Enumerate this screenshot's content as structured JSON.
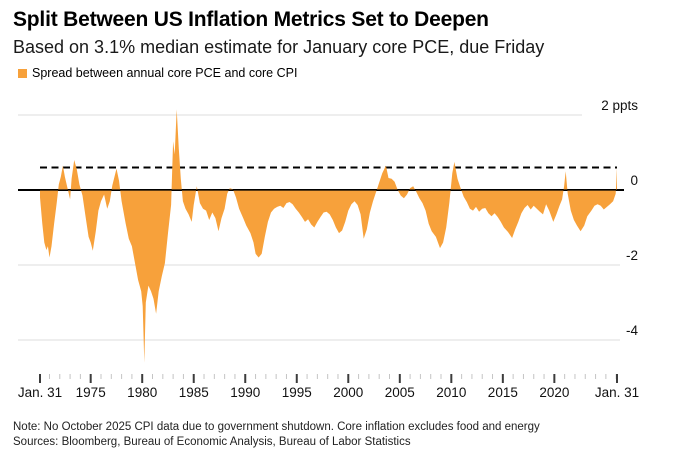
{
  "header": {
    "title": "Split Between US Inflation Metrics Set to Deepen",
    "subtitle": "Based on 3.1% median estimate for January core PCE, due Friday"
  },
  "legend": {
    "label": "Spread between annual core PCE and core CPI",
    "swatch_color": "#F7A13B"
  },
  "footer": {
    "note": "Note: No October 2025 CPI data due to government shutdown. Core inflation excludes food and energy",
    "sources": "Sources: Bloomberg, Bureau of Economic Analysis, Bureau of Labor Statistics"
  },
  "chart_data": {
    "type": "area",
    "title": "Split Between US Inflation Metrics Set to Deepen",
    "subtitle": "Based on 3.1% median estimate for January core PCE, due Friday",
    "unit": "ppts",
    "legend_position": "top-left",
    "grid": "horizontal",
    "series_color": "#F7A13B",
    "dashed_reference_value": 0.6,
    "x_axis": {
      "start_label": "Jan. 31",
      "end_label": "Jan. 31",
      "start_time": 1970.08,
      "end_time": 2026.08,
      "major_year_ticks": [
        1975,
        1980,
        1985,
        1990,
        1995,
        2000,
        2005,
        2010,
        2015,
        2020
      ],
      "minor_tick_every_years": 1
    },
    "y_axis": {
      "ticks": [
        {
          "label": "2 ppts",
          "value": 2
        },
        {
          "label": "0",
          "value": 0
        },
        {
          "label": "-2",
          "value": -2
        },
        {
          "label": "-4",
          "value": -4
        }
      ],
      "range": [
        -4.8,
        2.35
      ]
    },
    "series": [
      {
        "name": "Spread between annual core PCE and core CPI",
        "points": [
          [
            1970.08,
            -0.2
          ],
          [
            1970.3,
            -0.9
          ],
          [
            1970.5,
            -1.4
          ],
          [
            1970.7,
            -1.6
          ],
          [
            1970.85,
            -1.5
          ],
          [
            1971.0,
            -1.8
          ],
          [
            1971.2,
            -1.5
          ],
          [
            1971.45,
            -0.9
          ],
          [
            1971.7,
            -0.35
          ],
          [
            1971.9,
            0.15
          ],
          [
            1972.1,
            0.35
          ],
          [
            1972.3,
            0.65
          ],
          [
            1972.5,
            0.35
          ],
          [
            1972.75,
            0.05
          ],
          [
            1973.0,
            -0.25
          ],
          [
            1973.15,
            0.3
          ],
          [
            1973.4,
            0.8
          ],
          [
            1973.65,
            0.55
          ],
          [
            1973.9,
            0.15
          ],
          [
            1974.2,
            -0.15
          ],
          [
            1974.5,
            -0.7
          ],
          [
            1974.8,
            -1.25
          ],
          [
            1975.0,
            -1.4
          ],
          [
            1975.2,
            -1.62
          ],
          [
            1975.5,
            -1.1
          ],
          [
            1975.75,
            -0.55
          ],
          [
            1976.0,
            -0.3
          ],
          [
            1976.3,
            -0.12
          ],
          [
            1976.6,
            -0.5
          ],
          [
            1976.85,
            -0.3
          ],
          [
            1977.1,
            0.12
          ],
          [
            1977.5,
            0.57
          ],
          [
            1977.75,
            0.25
          ],
          [
            1978.0,
            -0.3
          ],
          [
            1978.4,
            -0.9
          ],
          [
            1978.7,
            -1.3
          ],
          [
            1979.0,
            -1.5
          ],
          [
            1979.3,
            -1.95
          ],
          [
            1979.6,
            -2.4
          ],
          [
            1979.9,
            -2.7
          ],
          [
            1980.05,
            -3.1
          ],
          [
            1980.2,
            -4.6
          ],
          [
            1980.35,
            -3.0
          ],
          [
            1980.6,
            -2.55
          ],
          [
            1980.85,
            -2.7
          ],
          [
            1981.1,
            -2.9
          ],
          [
            1981.35,
            -3.3
          ],
          [
            1981.6,
            -2.7
          ],
          [
            1981.9,
            -2.3
          ],
          [
            1982.2,
            -1.95
          ],
          [
            1982.5,
            -1.15
          ],
          [
            1982.8,
            -0.4
          ],
          [
            1983.0,
            1.3
          ],
          [
            1983.15,
            0.95
          ],
          [
            1983.35,
            2.15
          ],
          [
            1983.55,
            1.1
          ],
          [
            1983.75,
            0.3
          ],
          [
            1983.95,
            -0.3
          ],
          [
            1984.2,
            -0.5
          ],
          [
            1984.5,
            -0.65
          ],
          [
            1984.8,
            -0.85
          ],
          [
            1985.0,
            -0.4
          ],
          [
            1985.3,
            0.1
          ],
          [
            1985.6,
            -0.35
          ],
          [
            1985.9,
            -0.5
          ],
          [
            1986.2,
            -0.55
          ],
          [
            1986.5,
            -0.8
          ],
          [
            1986.8,
            -0.6
          ],
          [
            1987.1,
            -0.75
          ],
          [
            1987.4,
            -1.1
          ],
          [
            1987.7,
            -0.75
          ],
          [
            1988.0,
            -0.5
          ],
          [
            1988.25,
            -0.1
          ],
          [
            1988.5,
            0.05
          ],
          [
            1988.8,
            0.02
          ],
          [
            1989.1,
            -0.2
          ],
          [
            1989.4,
            -0.5
          ],
          [
            1989.8,
            -0.75
          ],
          [
            1990.1,
            -0.95
          ],
          [
            1990.5,
            -1.15
          ],
          [
            1990.8,
            -1.4
          ],
          [
            1991.0,
            -1.7
          ],
          [
            1991.3,
            -1.8
          ],
          [
            1991.6,
            -1.7
          ],
          [
            1991.9,
            -1.25
          ],
          [
            1992.2,
            -0.85
          ],
          [
            1992.5,
            -0.6
          ],
          [
            1992.8,
            -0.5
          ],
          [
            1993.1,
            -0.45
          ],
          [
            1993.4,
            -0.42
          ],
          [
            1993.7,
            -0.48
          ],
          [
            1994.0,
            -0.35
          ],
          [
            1994.3,
            -0.32
          ],
          [
            1994.6,
            -0.38
          ],
          [
            1994.9,
            -0.5
          ],
          [
            1995.2,
            -0.6
          ],
          [
            1995.5,
            -0.72
          ],
          [
            1995.8,
            -0.85
          ],
          [
            1996.1,
            -0.78
          ],
          [
            1996.4,
            -0.92
          ],
          [
            1996.7,
            -1.0
          ],
          [
            1997.0,
            -0.85
          ],
          [
            1997.3,
            -0.72
          ],
          [
            1997.6,
            -0.6
          ],
          [
            1997.9,
            -0.58
          ],
          [
            1998.2,
            -0.65
          ],
          [
            1998.5,
            -0.8
          ],
          [
            1998.8,
            -1.0
          ],
          [
            1999.1,
            -1.15
          ],
          [
            1999.4,
            -1.08
          ],
          [
            1999.7,
            -0.85
          ],
          [
            2000.0,
            -0.55
          ],
          [
            2000.3,
            -0.38
          ],
          [
            2000.6,
            -0.3
          ],
          [
            2000.9,
            -0.4
          ],
          [
            2001.2,
            -0.65
          ],
          [
            2001.5,
            -1.3
          ],
          [
            2001.8,
            -1.05
          ],
          [
            2002.1,
            -0.6
          ],
          [
            2002.4,
            -0.3
          ],
          [
            2002.7,
            -0.05
          ],
          [
            2003.0,
            0.2
          ],
          [
            2003.3,
            0.45
          ],
          [
            2003.65,
            0.65
          ],
          [
            2003.9,
            0.32
          ],
          [
            2004.2,
            0.3
          ],
          [
            2004.5,
            0.22
          ],
          [
            2004.8,
            0.0
          ],
          [
            2005.1,
            -0.15
          ],
          [
            2005.4,
            -0.22
          ],
          [
            2005.7,
            -0.12
          ],
          [
            2006.0,
            0.05
          ],
          [
            2006.3,
            0.1
          ],
          [
            2006.6,
            -0.05
          ],
          [
            2006.9,
            -0.22
          ],
          [
            2007.2,
            -0.35
          ],
          [
            2007.5,
            -0.55
          ],
          [
            2007.8,
            -0.9
          ],
          [
            2008.1,
            -1.1
          ],
          [
            2008.5,
            -1.25
          ],
          [
            2008.9,
            -1.55
          ],
          [
            2009.2,
            -1.4
          ],
          [
            2009.5,
            -1.0
          ],
          [
            2009.8,
            -0.35
          ],
          [
            2010.1,
            0.45
          ],
          [
            2010.3,
            0.75
          ],
          [
            2010.6,
            0.3
          ],
          [
            2010.9,
            0.05
          ],
          [
            2011.2,
            -0.18
          ],
          [
            2011.5,
            -0.32
          ],
          [
            2011.8,
            -0.5
          ],
          [
            2012.1,
            -0.55
          ],
          [
            2012.4,
            -0.45
          ],
          [
            2012.7,
            -0.58
          ],
          [
            2013.0,
            -0.5
          ],
          [
            2013.3,
            -0.48
          ],
          [
            2013.6,
            -0.62
          ],
          [
            2013.9,
            -0.7
          ],
          [
            2014.2,
            -0.62
          ],
          [
            2014.5,
            -0.72
          ],
          [
            2014.8,
            -0.85
          ],
          [
            2015.1,
            -1.0
          ],
          [
            2015.5,
            -1.12
          ],
          [
            2015.9,
            -1.28
          ],
          [
            2016.2,
            -1.05
          ],
          [
            2016.5,
            -0.85
          ],
          [
            2016.8,
            -0.62
          ],
          [
            2017.1,
            -0.48
          ],
          [
            2017.4,
            -0.4
          ],
          [
            2017.7,
            -0.52
          ],
          [
            2018.0,
            -0.42
          ],
          [
            2018.3,
            -0.5
          ],
          [
            2018.6,
            -0.58
          ],
          [
            2018.9,
            -0.65
          ],
          [
            2019.2,
            -0.38
          ],
          [
            2019.5,
            -0.55
          ],
          [
            2019.9,
            -0.85
          ],
          [
            2020.2,
            -0.65
          ],
          [
            2020.5,
            -0.42
          ],
          [
            2020.75,
            -0.25
          ],
          [
            2020.95,
            0.1
          ],
          [
            2021.1,
            0.5
          ],
          [
            2021.3,
            -0.1
          ],
          [
            2021.6,
            -0.55
          ],
          [
            2021.9,
            -0.8
          ],
          [
            2022.2,
            -0.95
          ],
          [
            2022.55,
            -1.1
          ],
          [
            2022.9,
            -0.95
          ],
          [
            2023.2,
            -0.7
          ],
          [
            2023.6,
            -0.55
          ],
          [
            2023.9,
            -0.42
          ],
          [
            2024.2,
            -0.38
          ],
          [
            2024.5,
            -0.42
          ],
          [
            2024.8,
            -0.52
          ],
          [
            2025.1,
            -0.45
          ],
          [
            2025.4,
            -0.38
          ],
          [
            2025.7,
            -0.3
          ],
          [
            2025.95,
            -0.1
          ],
          [
            2026.08,
            0.6
          ]
        ]
      }
    ]
  }
}
